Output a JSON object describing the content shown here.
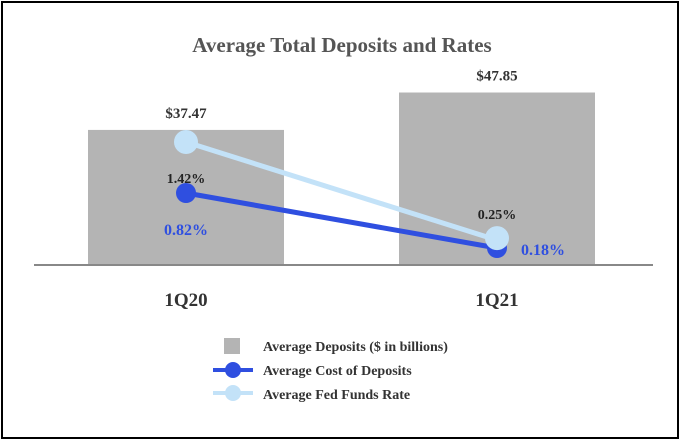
{
  "chart_data": {
    "type": "bar+line",
    "title": "Average Total Deposits and Rates",
    "categories": [
      "1Q20",
      "1Q21"
    ],
    "bars": {
      "name": "Average Deposits ($ in billions)",
      "values": [
        37.47,
        47.85
      ],
      "labels": [
        "$37.47",
        "$47.85"
      ],
      "color": "#b4b4b4"
    },
    "lines": [
      {
        "name": "Average Cost of Deposits",
        "values": [
          0.82,
          0.18
        ],
        "labels": [
          "0.82%",
          "0.18%"
        ],
        "color": "#2f4fe0"
      },
      {
        "name": "Average Fed Funds Rate",
        "values": [
          1.42,
          0.25
        ],
        "labels": [
          "1.42%",
          "0.25%"
        ],
        "color": "#c3e2f8"
      }
    ],
    "legend_position": "bottom-center"
  }
}
